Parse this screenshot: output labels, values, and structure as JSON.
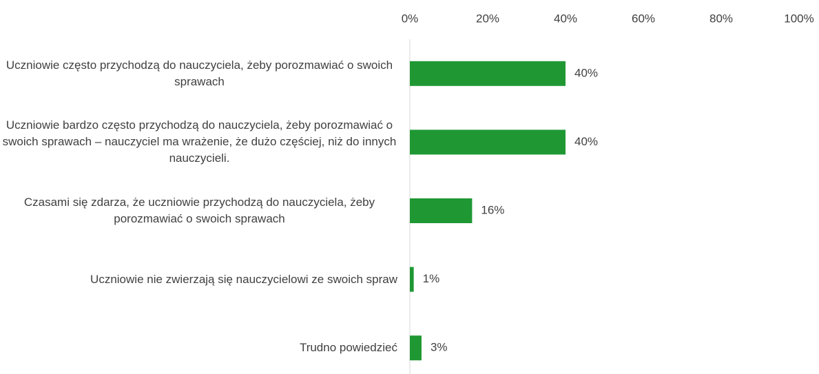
{
  "chart_data": {
    "type": "hbar",
    "categories": [
      "Uczniowie często przychodzą do nauczyciela, żeby porozmawiać o swoich sprawach",
      "Uczniowie bardzo często przychodzą do nauczyciela, żeby porozmawiać o swoich sprawach – nauczyciel ma wrażenie, że dużo częściej, niż do innych nauczycieli.",
      "Czasami się zdarza, że uczniowie przychodzą do nauczyciela, żeby porozmawiać o swoich sprawach",
      "Uczniowie nie zwierzają się nauczycielowi ze swoich spraw",
      "Trudno powiedzieć"
    ],
    "values": [
      40,
      40,
      16,
      1,
      3
    ],
    "value_labels": [
      "40%",
      "40%",
      "16%",
      "1%",
      "3%"
    ],
    "color": "#1f9834",
    "xlim": [
      0,
      100
    ],
    "xticks": [
      {
        "value": 0,
        "label": "0%"
      },
      {
        "value": 20,
        "label": "20%"
      },
      {
        "value": 40,
        "label": "40%"
      },
      {
        "value": 60,
        "label": "60%"
      },
      {
        "value": 80,
        "label": "80%"
      },
      {
        "value": 100,
        "label": "100%"
      }
    ],
    "grid": false
  }
}
